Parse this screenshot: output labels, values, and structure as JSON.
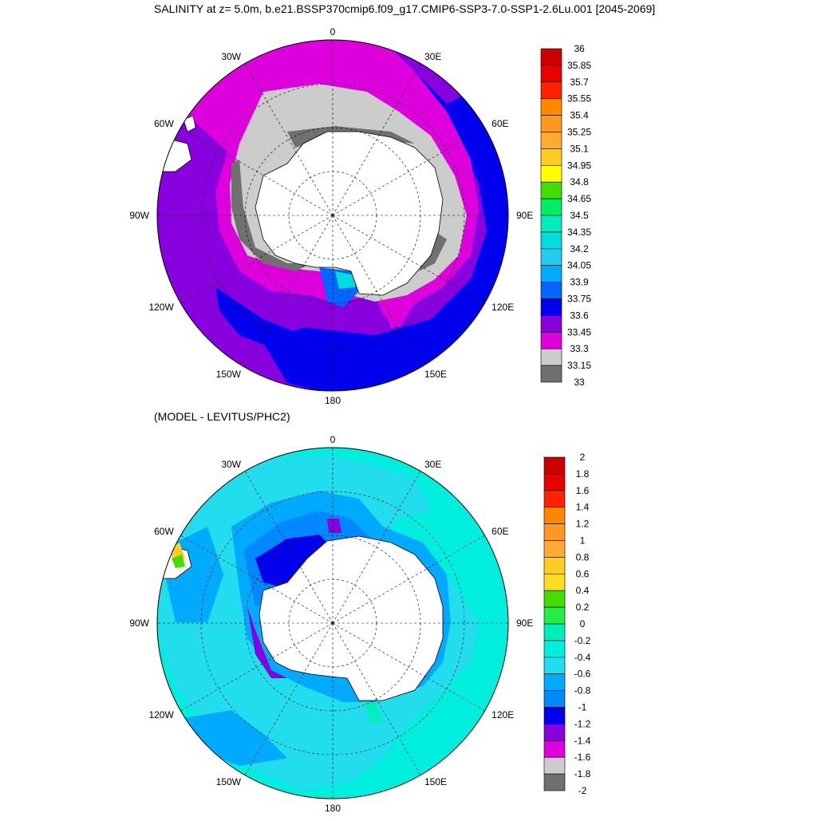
{
  "title": "SALINITY at z=   5.0m, b.e21.BSSP370cmip6.f09_g17.CMIP6-SSP3-7.0-SSP1-2.6Lu.001 [2045-2069]",
  "subtitle": "(MODEL - LEVITUS/PHC2)",
  "colors": {
    "land": "#ffffff",
    "coast": "#000000"
  },
  "top_map": {
    "lon_labels": [
      {
        "lon": 0,
        "text": "0"
      },
      {
        "lon": 30,
        "text": "30E"
      },
      {
        "lon": 60,
        "text": "60E"
      },
      {
        "lon": 90,
        "text": "90E"
      },
      {
        "lon": 120,
        "text": "120E"
      },
      {
        "lon": 150,
        "text": "150E"
      },
      {
        "lon": 180,
        "text": "180"
      },
      {
        "lon": 210,
        "text": "150W"
      },
      {
        "lon": 240,
        "text": "120W"
      },
      {
        "lon": 270,
        "text": "90W"
      },
      {
        "lon": 300,
        "text": "60W"
      },
      {
        "lon": 330,
        "text": "30W"
      }
    ],
    "colorbar": {
      "labels": [
        "36",
        "35.85",
        "35.7",
        "35.55",
        "35.4",
        "35.25",
        "35.1",
        "34.95",
        "34.8",
        "34.65",
        "34.5",
        "34.35",
        "34.2",
        "34.05",
        "33.9",
        "33.75",
        "33.6",
        "33.45",
        "33.3",
        "33.15",
        "33"
      ],
      "colors": [
        "#cc0000",
        "#e80000",
        "#ff2200",
        "#ff8800",
        "#ff9922",
        "#ffaa33",
        "#ffcc22",
        "#ffff00",
        "#44dd00",
        "#00ee66",
        "#00eebb",
        "#00dddd",
        "#22ccee",
        "#00aaff",
        "#0066ff",
        "#0000ee",
        "#8800dd",
        "#dd00dd",
        "#cccccc",
        "#707070"
      ]
    }
  },
  "bottom_map": {
    "lon_labels": [
      {
        "lon": 0,
        "text": "0"
      },
      {
        "lon": 30,
        "text": "30E"
      },
      {
        "lon": 60,
        "text": "60E"
      },
      {
        "lon": 90,
        "text": "90E"
      },
      {
        "lon": 120,
        "text": "120E"
      },
      {
        "lon": 150,
        "text": "150E"
      },
      {
        "lon": 180,
        "text": "180"
      },
      {
        "lon": 210,
        "text": "150W"
      },
      {
        "lon": 240,
        "text": "120W"
      },
      {
        "lon": 270,
        "text": "90W"
      },
      {
        "lon": 300,
        "text": "60W"
      },
      {
        "lon": 330,
        "text": "30W"
      }
    ],
    "colorbar": {
      "labels": [
        "2",
        "1.8",
        "1.6",
        "1.4",
        "1.2",
        "1",
        "0.8",
        "0.6",
        "0.4",
        "0.2",
        "0",
        "-0.2",
        "-0.4",
        "-0.6",
        "-0.8",
        "-1",
        "-1.2",
        "-1.4",
        "-1.6",
        "-1.8",
        "-2"
      ],
      "colors": [
        "#cc0000",
        "#e80000",
        "#ff2200",
        "#ff8800",
        "#ff9922",
        "#ffaa33",
        "#ffcc22",
        "#ffdd22",
        "#44dd00",
        "#22ee44",
        "#00eebb",
        "#00eedd",
        "#22ddee",
        "#00aaff",
        "#0088ff",
        "#0000ee",
        "#8800dd",
        "#dd00dd",
        "#cccccc",
        "#707070"
      ]
    }
  }
}
